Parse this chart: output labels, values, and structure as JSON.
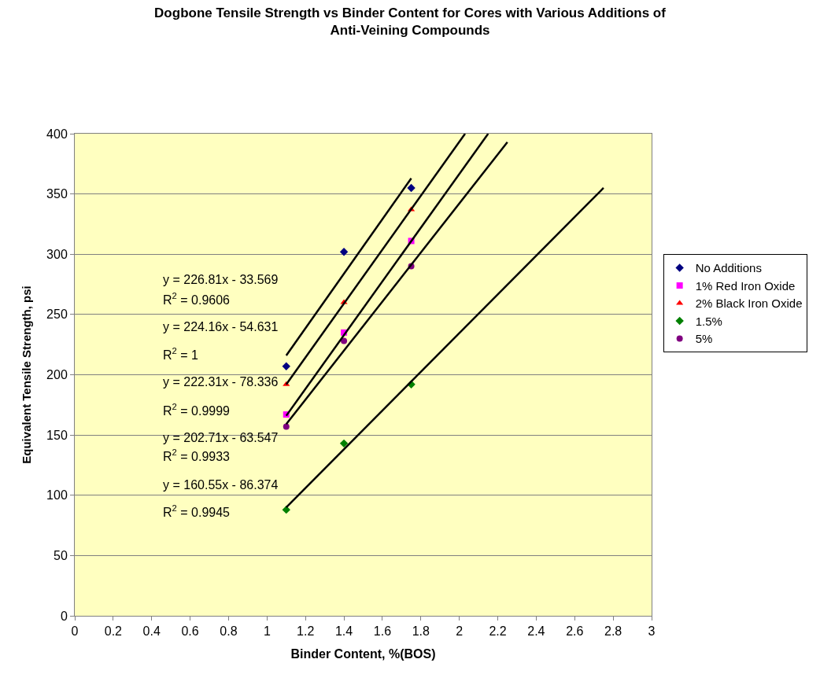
{
  "chart_data": {
    "type": "scatter",
    "title": "Dogbone Tensile Strength vs Binder Content for Cores with Various Additions of Anti-Veining Compounds",
    "xlabel": "Binder Content, %(BOS)",
    "ylabel": "Equivalent Tensile Strength, psi",
    "xlim": [
      0,
      3
    ],
    "xticks": [
      0,
      0.2,
      0.4,
      0.6,
      0.8,
      1,
      1.2,
      1.4,
      1.6,
      1.8,
      2,
      2.2,
      2.4,
      2.6,
      2.8,
      3
    ],
    "ylim": [
      0,
      400
    ],
    "yticks": [
      0,
      50,
      100,
      150,
      200,
      250,
      300,
      350,
      400
    ],
    "grid": "y",
    "legend": "right",
    "series": [
      {
        "name": "No Additions",
        "color": "#000080",
        "marker": "diamond",
        "x": [
          1.1,
          1.4,
          1.75
        ],
        "values": [
          207,
          302,
          355
        ]
      },
      {
        "name": "1% Red Iron Oxide",
        "color": "#ff00ff",
        "marker": "square",
        "x": [
          1.1,
          1.4,
          1.75
        ],
        "values": [
          167,
          235,
          311
        ]
      },
      {
        "name": "2% Black Iron Oxide",
        "color": "#ff0000",
        "marker": "triangle",
        "x": [
          1.1,
          1.4,
          1.75
        ],
        "values": [
          192,
          260,
          337
        ]
      },
      {
        "name": "1.5%",
        "color": "#008000",
        "marker": "diamond",
        "x": [
          1.1,
          1.4,
          1.75
        ],
        "values": [
          88,
          143,
          192
        ]
      },
      {
        "name": "5%",
        "color": "#800080",
        "marker": "circle",
        "x": [
          1.1,
          1.4,
          1.75
        ],
        "values": [
          157,
          228,
          290
        ]
      },
      {
        "type": "line",
        "color": "#000000",
        "line_style": "solid",
        "marker": "none",
        "x": [
          1.1,
          1.75
        ],
        "values": [
          216,
          363
        ]
      },
      {
        "type": "line",
        "color": "#000000",
        "line_style": "solid",
        "marker": "none",
        "x": [
          1.1,
          2.03
        ],
        "values": [
          192,
          400
        ]
      },
      {
        "type": "line",
        "color": "#000000",
        "line_style": "solid",
        "marker": "none",
        "x": [
          1.1,
          2.15
        ],
        "values": [
          166,
          400
        ]
      },
      {
        "type": "line",
        "color": "#000000",
        "line_style": "solid",
        "marker": "none",
        "x": [
          1.1,
          2.25
        ],
        "values": [
          159,
          393
        ]
      },
      {
        "type": "line",
        "color": "#000000",
        "line_style": "solid",
        "marker": "none",
        "x": [
          1.1,
          2.75
        ],
        "values": [
          90,
          355
        ]
      }
    ],
    "annotations": [
      "y = 226.81x - 33.569",
      "R$^{2}$ = 0.9606",
      "y = 224.16x - 54.631",
      "R$^{2}$ = 1",
      "y = 222.31x - 78.336",
      "R$^{2}$ = 0.9999",
      "y = 202.71x - 63.547",
      "R$^{2}$ = 0.9933",
      "y = 160.55x - 86.374",
      "R$^{2}$ = 0.9945"
    ]
  }
}
